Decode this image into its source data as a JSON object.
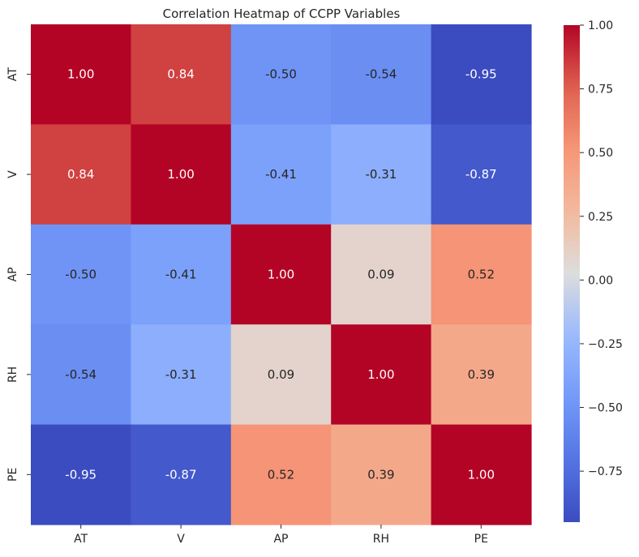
{
  "chart_data": {
    "type": "heatmap",
    "title": "Correlation Heatmap of CCPP Variables",
    "xlabel": "",
    "ylabel": "",
    "x_categories": [
      "AT",
      "V",
      "AP",
      "RH",
      "PE"
    ],
    "y_categories": [
      "AT",
      "V",
      "AP",
      "RH",
      "PE"
    ],
    "values": [
      [
        1.0,
        0.84,
        -0.5,
        -0.54,
        -0.95
      ],
      [
        0.84,
        1.0,
        -0.41,
        -0.31,
        -0.87
      ],
      [
        -0.5,
        -0.41,
        1.0,
        0.09,
        0.52
      ],
      [
        -0.54,
        -0.31,
        0.09,
        1.0,
        0.39
      ],
      [
        -0.95,
        -0.87,
        0.52,
        0.39,
        1.0
      ]
    ],
    "cell_labels": [
      [
        "1.00",
        "0.84",
        "-0.50",
        "-0.54",
        "-0.95"
      ],
      [
        "0.84",
        "1.00",
        "-0.41",
        "-0.31",
        "-0.87"
      ],
      [
        "-0.50",
        "-0.41",
        "1.00",
        "0.09",
        "0.52"
      ],
      [
        "-0.54",
        "-0.31",
        "0.09",
        "1.00",
        "0.39"
      ],
      [
        "-0.95",
        "-0.87",
        "0.52",
        "0.39",
        "1.00"
      ]
    ],
    "colormap": "coolwarm",
    "vmin": -0.95,
    "vmax": 1.0,
    "colorbar": {
      "ticks": [
        1.0,
        0.75,
        0.5,
        0.25,
        0.0,
        -0.25,
        -0.5,
        -0.75
      ],
      "tick_labels": [
        "1.00",
        "0.75",
        "0.50",
        "0.25",
        "0.00",
        "−0.25",
        "−0.50",
        "−0.75"
      ]
    },
    "grid": false,
    "legend": "colorbar-right"
  }
}
